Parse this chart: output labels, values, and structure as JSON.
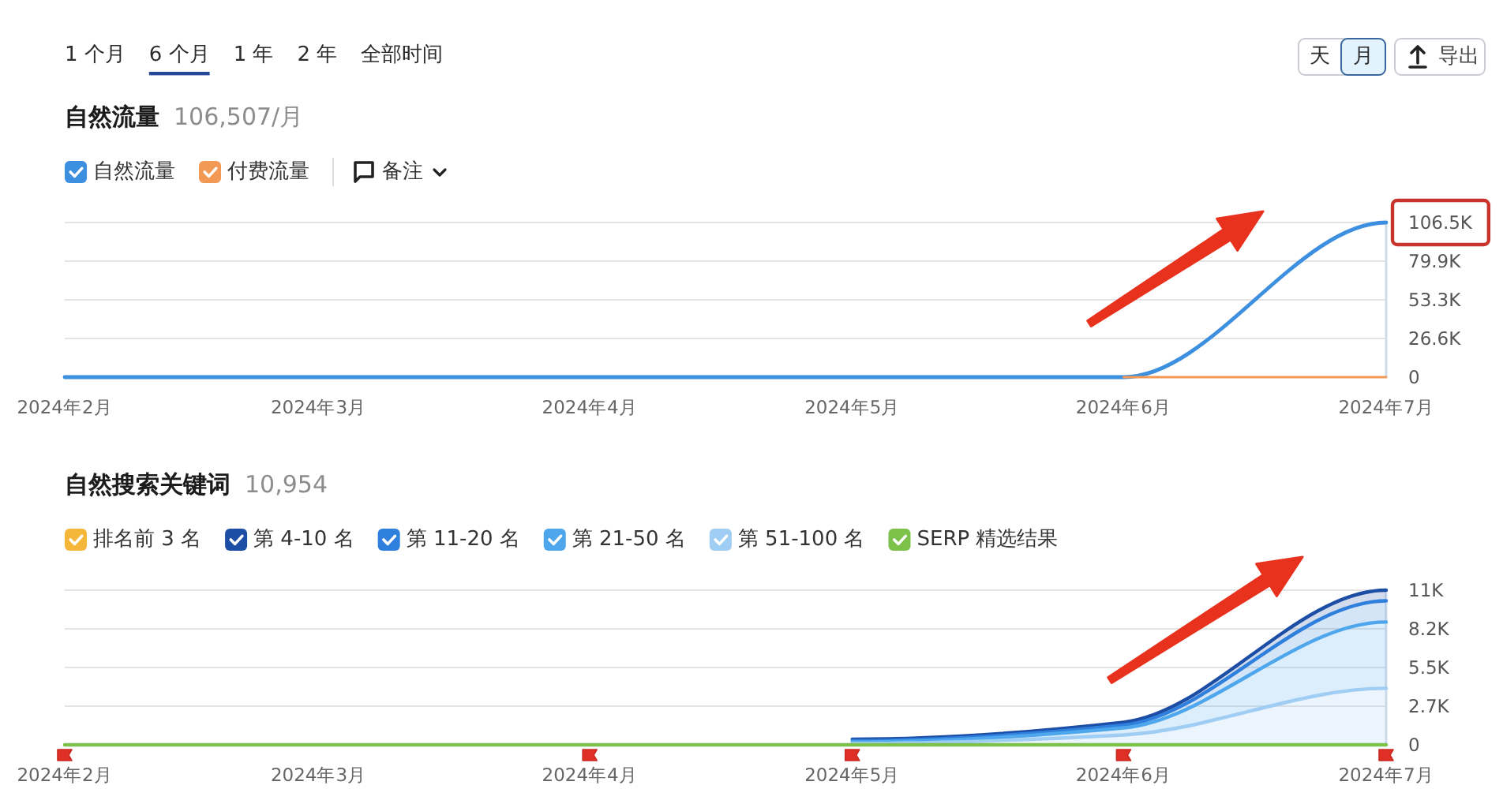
{
  "chart_data": [
    {
      "type": "other",
      "annotations": [
        "1 个月",
        "6 个月",
        "1 年",
        "2 年",
        "全部时间",
        "天",
        "月",
        "导出"
      ]
    },
    {
      "type": "line",
      "title": "自然流量",
      "subtitle": "106,507/月",
      "x": [
        "2024-02",
        "2024-03",
        "2024-04",
        "2024-05",
        "2024-06",
        "2024-07"
      ],
      "series": [
        {
          "name": "自然流量",
          "color": "#3d8fe0",
          "values": [
            0,
            0,
            0,
            0,
            0,
            106507
          ]
        },
        {
          "name": "付费流量",
          "color": "#f29a55",
          "values": [
            null,
            null,
            null,
            null,
            0,
            0
          ]
        }
      ],
      "xlim": [
        "2024-02",
        "2024-07"
      ],
      "xticks": [
        {
          "value": "2024-02",
          "label": "2024年2月"
        },
        {
          "value": "2024-03",
          "label": "2024年3月"
        },
        {
          "value": "2024-04",
          "label": "2024年4月"
        },
        {
          "value": "2024-05",
          "label": "2024年5月"
        },
        {
          "value": "2024-06",
          "label": "2024年6月"
        },
        {
          "value": "2024-07",
          "label": "2024年7月"
        }
      ],
      "ylim": [
        0,
        106507
      ],
      "yticks": [
        0,
        {
          "value": 26626.75,
          "label": "26.6K"
        },
        {
          "value": 53253.5,
          "label": "53.3K"
        },
        {
          "value": 79880.25,
          "label": "79.9K"
        },
        {
          "value": 106507,
          "label": "106.5K"
        }
      ],
      "grid": "y",
      "legend": "top left",
      "annotations": [
        "备注"
      ]
    },
    {
      "type": "area",
      "stacked": true,
      "title": "自然搜索关键词",
      "subtitle": "10,954",
      "x": [
        "2024-02",
        "2024-03",
        "2024-04",
        "2024-05",
        "2024-06",
        "2024-07"
      ],
      "series": [
        {
          "name": "SERP 精选结果",
          "type": "line",
          "color": "#7cc24a",
          "values": [
            0,
            0,
            0,
            0,
            0,
            0
          ]
        },
        {
          "name": "第 51-100 名",
          "color": "#9fcdf4",
          "values": [
            null,
            null,
            null,
            100,
            700,
            4000
          ]
        },
        {
          "name": "第 21-50 名",
          "color": "#4ea6ec",
          "values": [
            null,
            null,
            null,
            100,
            500,
            4700
          ]
        },
        {
          "name": "第 11-20 名",
          "color": "#2f7fdc",
          "values": [
            null,
            null,
            null,
            100,
            200,
            1500
          ]
        },
        {
          "name": "第 4-10 名",
          "color": "#1d4ea6",
          "values": [
            null,
            null,
            null,
            100,
            200,
            754
          ]
        },
        {
          "name": "排名前 3 名",
          "color": "#f5b73a",
          "values": [
            null,
            null,
            null,
            null,
            null,
            null
          ]
        }
      ],
      "xlim": [
        "2024-02",
        "2024-07"
      ],
      "xticks": [
        {
          "value": "2024-02",
          "label": "2024年2月"
        },
        {
          "value": "2024-03",
          "label": "2024年3月"
        },
        {
          "value": "2024-04",
          "label": "2024年4月"
        },
        {
          "value": "2024-05",
          "label": "2024年5月"
        },
        {
          "value": "2024-06",
          "label": "2024年6月"
        },
        {
          "value": "2024-07",
          "label": "2024年7月"
        }
      ],
      "ylim": [
        0,
        10954
      ],
      "yticks": [
        0,
        {
          "value": 2738.5,
          "label": "2.7K"
        },
        {
          "value": 5477,
          "label": "5.5K"
        },
        {
          "value": 8215.5,
          "label": "8.2K"
        },
        {
          "value": 10954,
          "label": "11K"
        }
      ],
      "grid": "y",
      "legend": "top left"
    }
  ]
}
